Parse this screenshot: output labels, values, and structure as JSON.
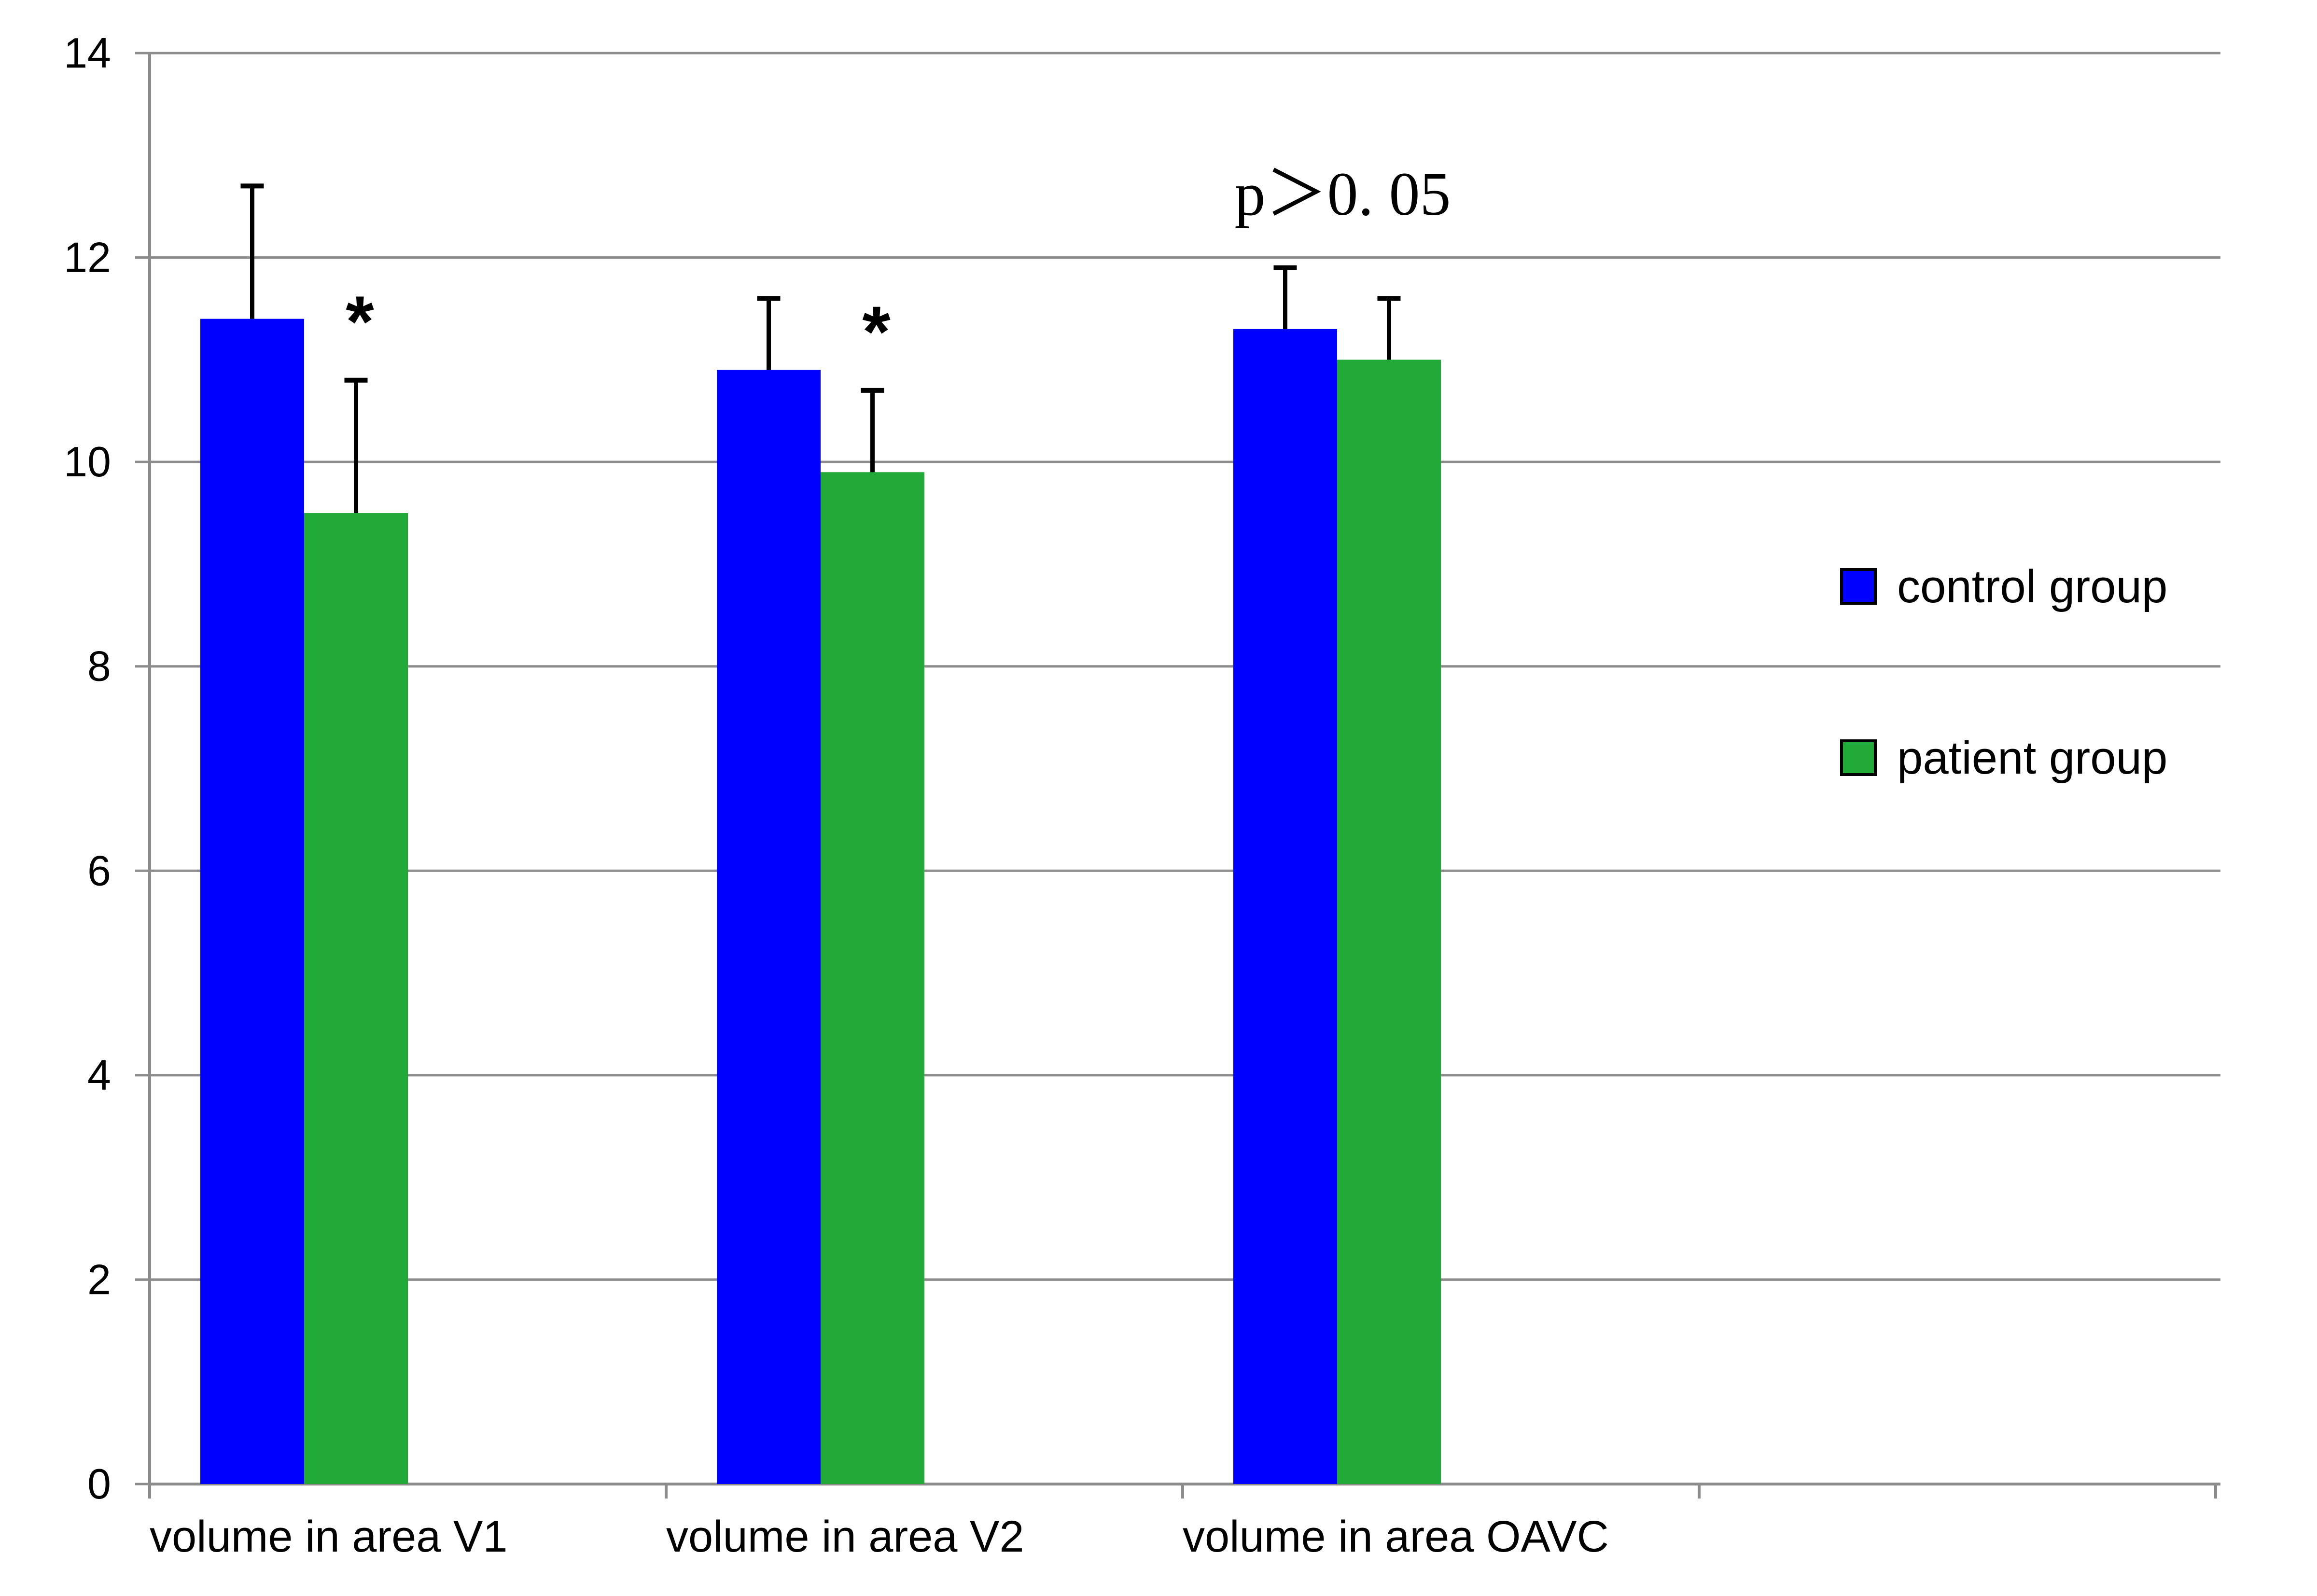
{
  "chart_data": {
    "type": "bar",
    "categories": [
      "volume in area V1",
      "volume in area V2",
      "volume in area OAVC"
    ],
    "series": [
      {
        "name": "control group",
        "color": "#0000ff",
        "values": [
          11.4,
          10.9,
          11.3
        ],
        "error": [
          1.3,
          0.7,
          0.6
        ]
      },
      {
        "name": "patient group",
        "color": "#22aa38",
        "values": [
          9.5,
          9.9,
          11.0
        ],
        "error": [
          1.3,
          0.8,
          0.6
        ]
      }
    ],
    "ylim": [
      0,
      14
    ],
    "yticks": [
      "0",
      "2",
      "4",
      "6",
      "8",
      "10",
      "12",
      "14"
    ],
    "grid": true,
    "legend_position": "right",
    "annotations": [
      {
        "category": 0,
        "series": 1,
        "text": "*"
      },
      {
        "category": 1,
        "series": 1,
        "text": "*"
      },
      {
        "category": 2,
        "series": -1,
        "text": "p＞0. 05"
      }
    ]
  }
}
